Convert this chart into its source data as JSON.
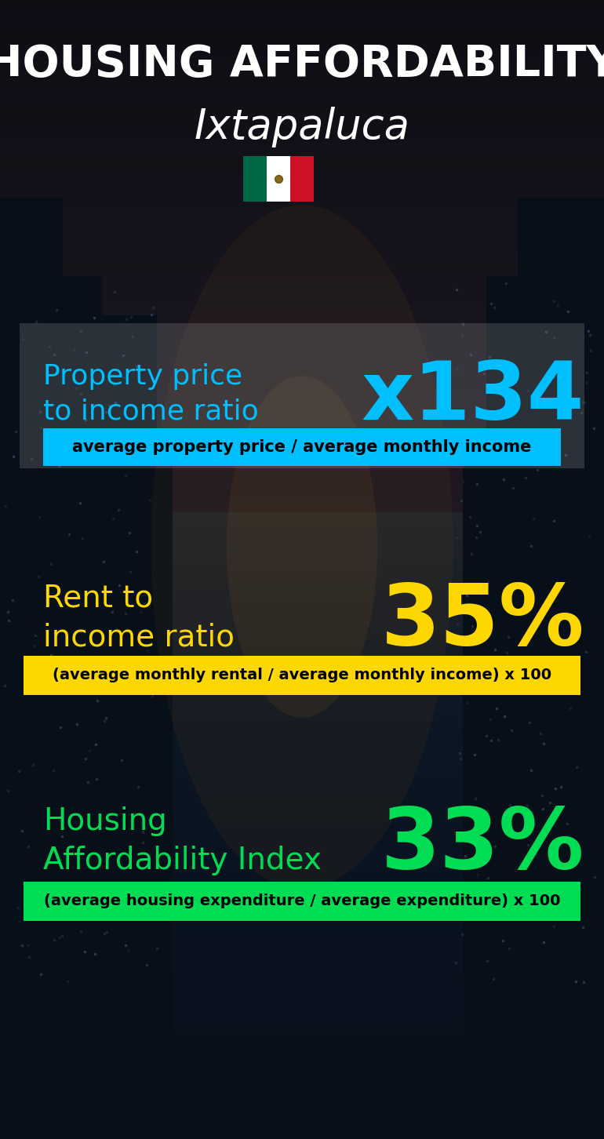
{
  "title_line1": "HOUSING AFFORDABILITY",
  "title_line2": "Ixtapaluca",
  "section1_label": "Property price\nto income ratio",
  "section1_value": "x134",
  "section1_label_color": "#00bfff",
  "section1_value_color": "#00bfff",
  "section1_banner_text": "average property price / average monthly income",
  "section1_banner_bg": "#00bfff",
  "section1_banner_text_color": "#000000",
  "section2_label": "Rent to\nincome ratio",
  "section2_value": "35%",
  "section2_label_color": "#ffd700",
  "section2_value_color": "#ffd700",
  "section2_banner_text": "(average monthly rental / average monthly income) x 100",
  "section2_banner_bg": "#ffd700",
  "section2_banner_text_color": "#000000",
  "section3_label": "Housing\nAffordability Index",
  "section3_value": "33%",
  "section3_label_color": "#00dd55",
  "section3_value_color": "#00dd55",
  "section3_banner_text": "(average housing expenditure / average expenditure) x 100",
  "section3_banner_bg": "#00dd55",
  "section3_banner_text_color": "#000000",
  "flag_green": "#006847",
  "flag_white": "#ffffff",
  "flag_red": "#ce1126",
  "title_color": "#ffffff",
  "overall_bg": "#080e16"
}
